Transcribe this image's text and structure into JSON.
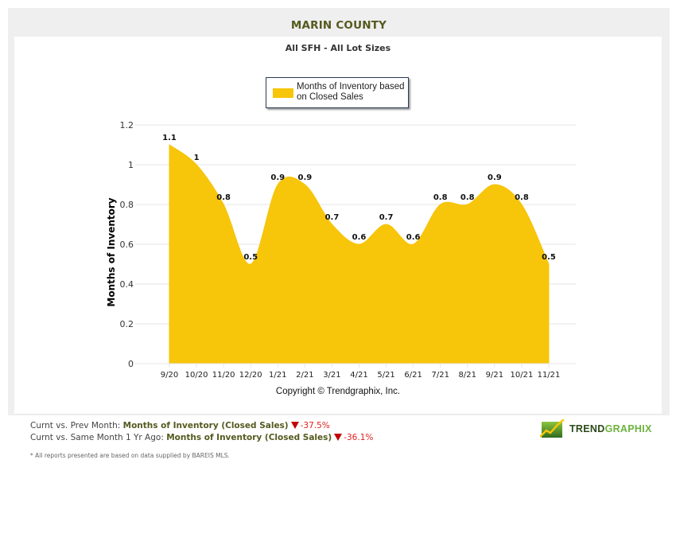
{
  "header": {
    "title": "MARIN COUNTY",
    "subtitle": "All SFH - All Lot Sizes"
  },
  "legend": {
    "label": "Months of Inventory based on Closed Sales",
    "color": "#f7c50a"
  },
  "chart_data": {
    "type": "area",
    "title": "MARIN COUNTY",
    "subtitle": "All SFH - All Lot Sizes",
    "xlabel": "",
    "ylabel": "Months of Inventory",
    "categories": [
      "9/20",
      "10/20",
      "11/20",
      "12/20",
      "1/21",
      "2/21",
      "3/21",
      "4/21",
      "5/21",
      "6/21",
      "7/21",
      "8/21",
      "9/21",
      "10/21",
      "11/21"
    ],
    "series": [
      {
        "name": "Months of Inventory based on Closed Sales",
        "values": [
          1.1,
          1,
          0.8,
          0.5,
          0.9,
          0.9,
          0.7,
          0.6,
          0.7,
          0.6,
          0.8,
          0.8,
          0.9,
          0.8,
          0.5
        ],
        "color": "#f7c50a"
      }
    ],
    "data_labels": [
      "1.1",
      "1",
      "0.8",
      "0.5",
      "0.9",
      "0.9",
      "0.7",
      "0.6",
      "0.7",
      "0.6",
      "0.8",
      "0.8",
      "0.9",
      "0.8",
      "0.5"
    ],
    "yticks": [
      "0",
      "0.2",
      "0.4",
      "0.6",
      "0.8",
      "1",
      "1.2"
    ],
    "ylim": [
      0,
      1.2
    ],
    "grid": true,
    "legend_position": "top-center",
    "annotation": "Copyright © Trendgraphix, Inc."
  },
  "footer": {
    "copyright": "Copyright © Trendgraphix, Inc.",
    "stats": [
      {
        "label": "Curnt vs. Prev Month:",
        "metric": "Months of Inventory (Closed Sales)",
        "change": "-37.5%",
        "direction": "down"
      },
      {
        "label": "Curnt vs. Same Month 1 Yr Ago:",
        "metric": "Months of Inventory (Closed Sales)",
        "change": "-36.1%",
        "direction": "down"
      }
    ],
    "note": "* All reports presented are based on data supplied by BAREIS MLS.",
    "logo": {
      "part1": "TREND",
      "part2": "GRAPHIX"
    }
  }
}
